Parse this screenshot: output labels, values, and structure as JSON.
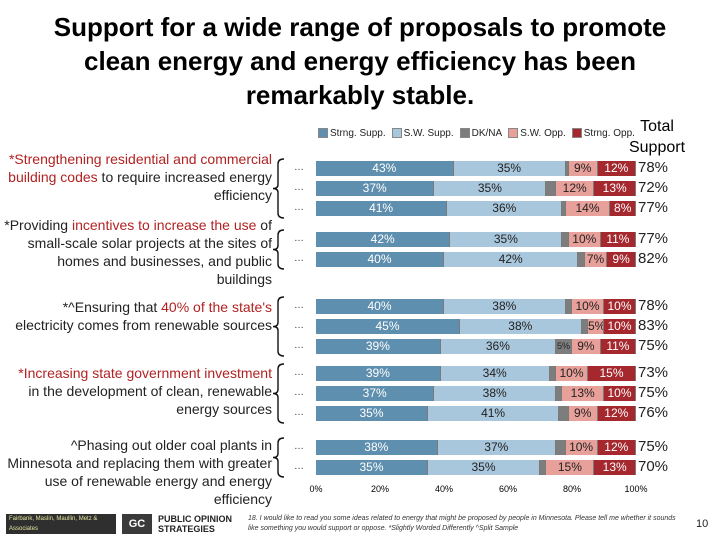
{
  "title": "Support for a wide range of proposals to promote clean energy and energy efficiency has been remarkably stable.",
  "legend": [
    {
      "label": "Strng. Supp.",
      "color": "#5f8fae"
    },
    {
      "label": "S.W. Supp.",
      "color": "#a9c7dc"
    },
    {
      "label": "DK/NA",
      "color": "#7d7d7d"
    },
    {
      "label": "S.W. Opp.",
      "color": "#e8a09a"
    },
    {
      "label": "Strng. Opp.",
      "color": "#a4282d"
    }
  ],
  "total_support_label": "Total Support",
  "chart_data": {
    "type": "bar",
    "orientation": "horizontal",
    "stacked": true,
    "xlim": [
      0,
      100
    ],
    "x_tick_labels": [
      "0%",
      "20%",
      "40%",
      "60%",
      "80%",
      "100%"
    ],
    "series_names": [
      "Strng. Supp.",
      "S.W. Supp.",
      "DK/NA",
      "S.W. Opp.",
      "Strng. Opp."
    ],
    "groups": [
      {
        "label_parts": [
          {
            "text": "*Strengthening residential and ",
            "hl": true
          },
          {
            "text": "commercial building codes",
            "hl": true
          },
          {
            "text": " to require increased energy efficiency",
            "hl": false
          }
        ],
        "rows": [
          {
            "values": [
              43,
              35,
              1,
              9,
              12
            ],
            "labels": [
              "43%",
              "35%",
              "",
              "9%",
              "12%"
            ],
            "total": "78%"
          },
          {
            "values": [
              37,
              35,
              3,
              12,
              13
            ],
            "labels": [
              "37%",
              "35%",
              "",
              "12%",
              "13%"
            ],
            "total": "72%"
          },
          {
            "values": [
              41,
              36,
              1,
              14,
              8
            ],
            "labels": [
              "41%",
              "36%",
              "",
              "14%",
              "8%"
            ],
            "total": "77%"
          }
        ]
      },
      {
        "label_parts": [
          {
            "text": "*Providing ",
            "hl": false
          },
          {
            "text": "incentives to increase the use",
            "hl": true
          },
          {
            "text": " of small-scale solar projects at the sites of homes and businesses, and public buildings",
            "hl": false
          }
        ],
        "rows": [
          {
            "values": [
              42,
              35,
              2,
              10,
              11
            ],
            "labels": [
              "42%",
              "35%",
              "",
              "10%",
              "11%"
            ],
            "total": "77%"
          },
          {
            "values": [
              40,
              42,
              2,
              7,
              9
            ],
            "labels": [
              "40%",
              "42%",
              "",
              "7%",
              "9%"
            ],
            "total": "82%"
          }
        ]
      },
      {
        "label_parts": [
          {
            "text": "*^Ensuring that ",
            "hl": false
          },
          {
            "text": "40% of the state's",
            "hl": true
          },
          {
            "text": " electricity comes from renewable sources",
            "hl": false
          }
        ],
        "rows": [
          {
            "values": [
              40,
              38,
              2,
              10,
              10
            ],
            "labels": [
              "40%",
              "38%",
              "",
              "10%",
              "10%"
            ],
            "total": "78%"
          },
          {
            "values": [
              45,
              38,
              2,
              5,
              10
            ],
            "labels": [
              "45%",
              "38%",
              "",
              "5%",
              "10%"
            ],
            "total": "83%"
          },
          {
            "values": [
              39,
              36,
              5,
              9,
              11
            ],
            "labels": [
              "39%",
              "36%",
              "5%",
              "9%",
              "11%"
            ],
            "total": "75%"
          }
        ]
      },
      {
        "label_parts": [
          {
            "text": "*Increasing state government investment",
            "hl": true
          },
          {
            "text": " in the development of clean, renewable energy sources",
            "hl": false
          }
        ],
        "rows": [
          {
            "values": [
              39,
              34,
              2,
              10,
              15
            ],
            "labels": [
              "39%",
              "34%",
              "",
              "10%",
              "15%"
            ],
            "total": "73%"
          },
          {
            "values": [
              37,
              38,
              2,
              13,
              10
            ],
            "labels": [
              "37%",
              "38%",
              "",
              "13%",
              "10%"
            ],
            "total": "75%"
          },
          {
            "values": [
              35,
              41,
              3,
              9,
              12
            ],
            "labels": [
              "35%",
              "41%",
              "",
              "9%",
              "12%"
            ],
            "total": "76%"
          }
        ]
      },
      {
        "label_parts": [
          {
            "text": "^Phasing out older coal plants in Minnesota and replacing them with greater use of renewable energy and energy efficiency",
            "hl": false
          }
        ],
        "rows": [
          {
            "values": [
              38,
              37,
              3,
              10,
              12
            ],
            "labels": [
              "38%",
              "37%",
              "",
              "10%",
              "12%"
            ],
            "total": "75%"
          },
          {
            "values": [
              35,
              35,
              2,
              15,
              13
            ],
            "labels": [
              "35%",
              "35%",
              "",
              "15%",
              "13%"
            ],
            "total": "70%"
          }
        ]
      }
    ]
  },
  "footer": {
    "logo1_text": "Fairbank, Maslin, Maullin, Metz & Associates",
    "logo2_text": "GC",
    "logo3_line1": "PUBLIC OPINION",
    "logo3_line2": "STRATEGIES",
    "footnote": "18. I would like to read you some ideas related to energy that might be proposed by people in Minnesota. Please tell me whether it sounds like something you would support or oppose. *Slightly Worded Differently ^Split Sample",
    "page_number": "10"
  }
}
